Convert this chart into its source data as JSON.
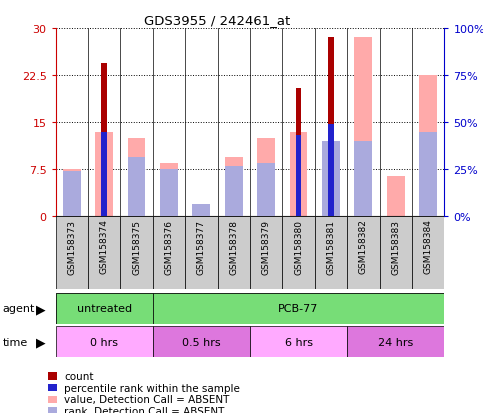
{
  "title": "GDS3955 / 242461_at",
  "samples": [
    "GSM158373",
    "GSM158374",
    "GSM158375",
    "GSM158376",
    "GSM158377",
    "GSM158378",
    "GSM158379",
    "GSM158380",
    "GSM158381",
    "GSM158382",
    "GSM158383",
    "GSM158384"
  ],
  "count_values": [
    0,
    24.5,
    0,
    0,
    0,
    0,
    0,
    20.5,
    28.5,
    0,
    0,
    0
  ],
  "percentile_rank": [
    0,
    13.5,
    0,
    0,
    0,
    0,
    0,
    13.0,
    14.7,
    0,
    0,
    0
  ],
  "absent_value": [
    7.5,
    13.5,
    12.5,
    8.5,
    0,
    9.5,
    12.5,
    13.5,
    0,
    28.5,
    6.5,
    22.5
  ],
  "absent_rank": [
    7.2,
    0,
    9.5,
    7.5,
    2.0,
    8.0,
    8.5,
    0,
    12.0,
    12.0,
    0,
    13.5
  ],
  "ylim_left": [
    0,
    30
  ],
  "ylim_right": [
    0,
    100
  ],
  "yticks_left": [
    0,
    7.5,
    15,
    22.5,
    30
  ],
  "yticks_right": [
    0,
    25,
    50,
    75,
    100
  ],
  "ytick_labels_left": [
    "0",
    "7.5",
    "15",
    "22.5",
    "30"
  ],
  "ytick_labels_right": [
    "0%",
    "25%",
    "50%",
    "75%",
    "100%"
  ],
  "color_count": "#aa0000",
  "color_percentile": "#2222cc",
  "color_absent_value": "#ffaaaa",
  "color_absent_rank": "#aaaadd",
  "agent_groups": [
    {
      "label": "untreated",
      "start": 0,
      "end": 3
    },
    {
      "label": "PCB-77",
      "start": 3,
      "end": 12
    }
  ],
  "time_groups": [
    {
      "label": "0 hrs",
      "start": 0,
      "end": 3
    },
    {
      "label": "0.5 hrs",
      "start": 3,
      "end": 6
    },
    {
      "label": "6 hrs",
      "start": 6,
      "end": 9
    },
    {
      "label": "24 hrs",
      "start": 9,
      "end": 12
    }
  ],
  "legend_items": [
    {
      "label": "count",
      "color": "#aa0000"
    },
    {
      "label": "percentile rank within the sample",
      "color": "#2222cc"
    },
    {
      "label": "value, Detection Call = ABSENT",
      "color": "#ffaaaa"
    },
    {
      "label": "rank, Detection Call = ABSENT",
      "color": "#aaaadd"
    }
  ],
  "agent_color": "#77dd77",
  "time_color_1": "#ffaaff",
  "time_color_2": "#dd77dd",
  "sample_box_color": "#cccccc",
  "plot_bg": "#ffffff",
  "fig_bg": "#ffffff"
}
